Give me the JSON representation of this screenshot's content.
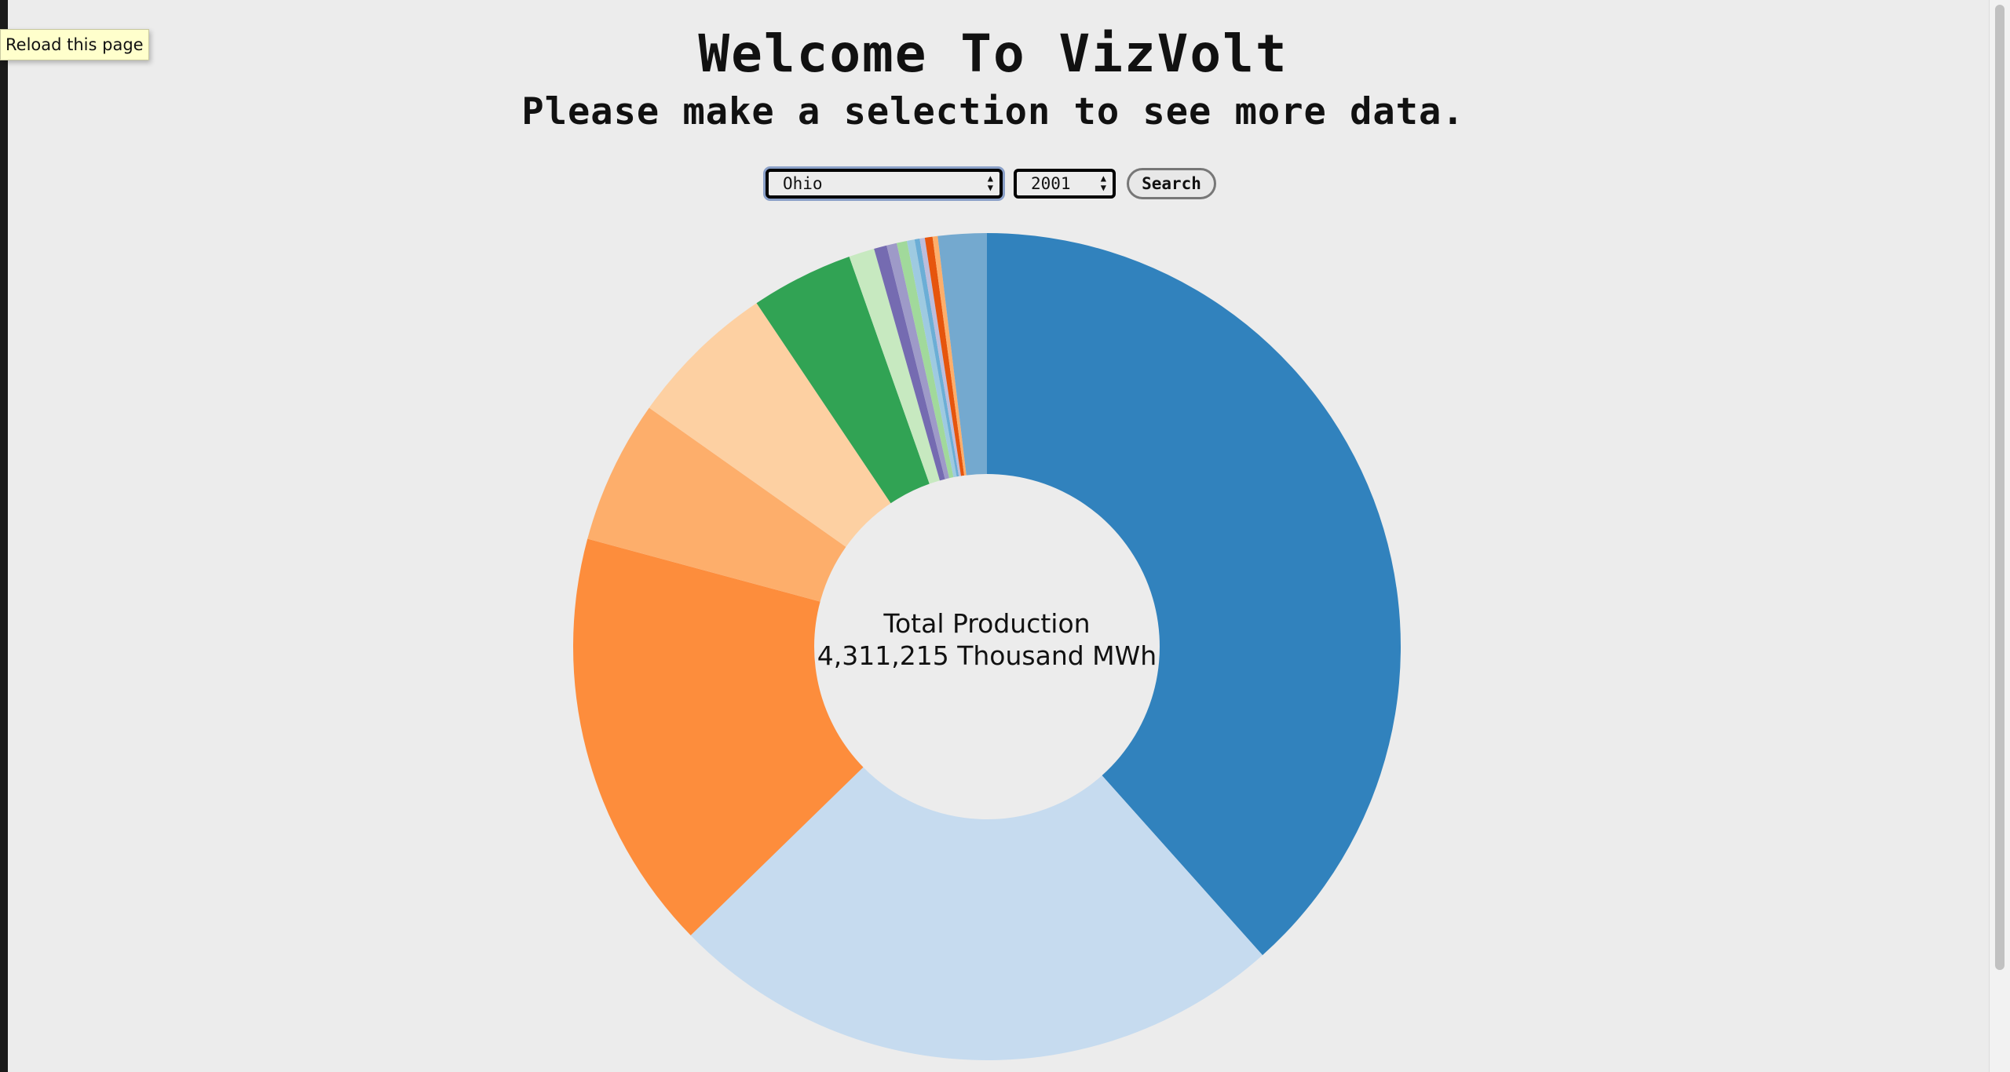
{
  "browser": {
    "tooltip": "Reload this page"
  },
  "header": {
    "title": "Welcome To VizVolt",
    "subtitle": "Please make a selection to see more data."
  },
  "controls": {
    "state_value": "Ohio",
    "year_value": "2001",
    "search_label": "Search"
  },
  "center": {
    "line1": "Total Production",
    "line2": "4,311,215 Thousand MWh"
  },
  "chart_data": {
    "type": "pie",
    "total_label": "4,311,215 Thousand MWh",
    "slices": [
      {
        "value": 0.384,
        "color": "#3182bd"
      },
      {
        "value": 0.243,
        "color": "#c6dbef"
      },
      {
        "value": 0.165,
        "color": "#fd8d3c"
      },
      {
        "value": 0.056,
        "color": "#fdae6b"
      },
      {
        "value": 0.058,
        "color": "#fdd0a2"
      },
      {
        "value": 0.04,
        "color": "#31a354"
      },
      {
        "value": 0.01,
        "color": "#c7e9c0"
      },
      {
        "value": 0.005,
        "color": "#756bb1"
      },
      {
        "value": 0.004,
        "color": "#9e9ac8"
      },
      {
        "value": 0.004,
        "color": "#a1d99b"
      },
      {
        "value": 0.003,
        "color": "#9ecae1"
      },
      {
        "value": 0.002,
        "color": "#6baed6"
      },
      {
        "value": 0.002,
        "color": "#bcbddc"
      },
      {
        "value": 0.003,
        "color": "#e6550d"
      },
      {
        "value": 0.002,
        "color": "#fdae6b"
      },
      {
        "value": 0.019,
        "color": "#74a9cf"
      }
    ]
  }
}
